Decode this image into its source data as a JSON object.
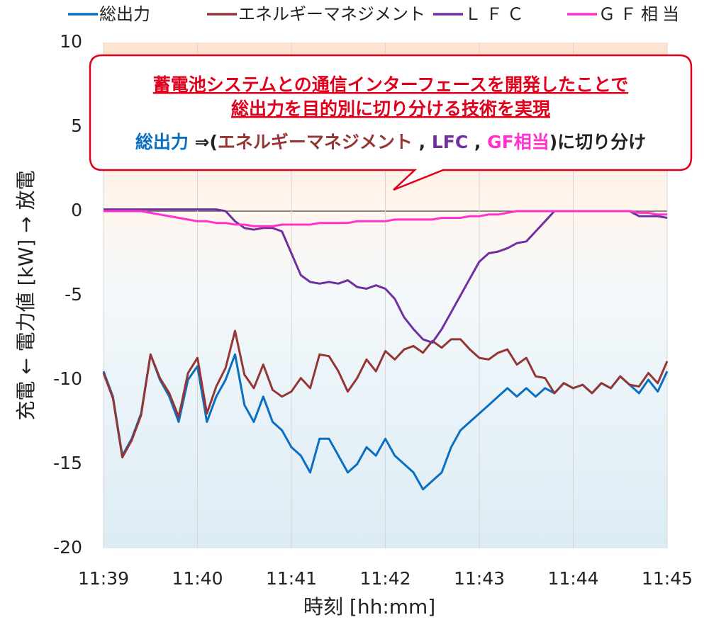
{
  "chart_data": {
    "type": "line",
    "x_label": "時刻 [hh:mm]",
    "y_label": "充電 ← 電力値 [kW] → 放電",
    "xlim": [
      699,
      705
    ],
    "xticks": [
      {
        "value": 699,
        "label": "11:39"
      },
      {
        "value": 700,
        "label": "11:40"
      },
      {
        "value": 701,
        "label": "11:41"
      },
      {
        "value": 702,
        "label": "11:42"
      },
      {
        "value": 703,
        "label": "11:43"
      },
      {
        "value": 704,
        "label": "11:44"
      },
      {
        "value": 705,
        "label": "11:45"
      }
    ],
    "ylim": [
      -20,
      10
    ],
    "yticks": [
      -20,
      -15,
      -10,
      -5,
      0,
      5,
      10
    ],
    "grid": "x",
    "legend": "top",
    "x": [
      699.0,
      699.1,
      699.2,
      699.3,
      699.4,
      699.5,
      699.6,
      699.7,
      699.8,
      699.9,
      700.0,
      700.1,
      700.2,
      700.3,
      700.4,
      700.5,
      700.6,
      700.7,
      700.8,
      700.9,
      701.0,
      701.1,
      701.2,
      701.3,
      701.4,
      701.5,
      701.6,
      701.7,
      701.8,
      701.9,
      702.0,
      702.1,
      702.2,
      702.3,
      702.4,
      702.5,
      702.6,
      702.7,
      702.8,
      702.9,
      703.0,
      703.1,
      703.2,
      703.3,
      703.4,
      703.5,
      703.6,
      703.7,
      703.8,
      703.9,
      704.0,
      704.1,
      704.2,
      704.3,
      704.4,
      704.5,
      704.6,
      704.7,
      704.8,
      704.9,
      705.0
    ],
    "series": [
      {
        "name": "総出力",
        "color": "#0a6fc2",
        "values": [
          -9.5,
          -11,
          -14.5,
          -13.5,
          -12,
          -8.5,
          -10,
          -11,
          -12.5,
          -10,
          -9.2,
          -12.5,
          -11,
          -10,
          -8.5,
          -11.5,
          -12.5,
          -11,
          -12.5,
          -13,
          -14,
          -14.5,
          -15.5,
          -13.5,
          -13.5,
          -14.5,
          -15.5,
          -15,
          -14,
          -14.5,
          -13.5,
          -14.5,
          -15,
          -15.5,
          -16.5,
          -16,
          -15.5,
          -14,
          -13,
          -12.5,
          -12,
          -11.5,
          -11,
          -10.5,
          -11,
          -10.5,
          -11,
          -10.5,
          -10.8,
          -10.2,
          -10.5,
          -10.3,
          -10.8,
          -10.2,
          -10.5,
          -9.8,
          -10.3,
          -10.8,
          -10,
          -10.7,
          -9.5
        ]
      },
      {
        "name": "エネルギーマネジメント",
        "color": "#943634",
        "values": [
          -9.6,
          -11.1,
          -14.6,
          -13.6,
          -12.1,
          -8.5,
          -9.9,
          -10.8,
          -12.2,
          -9.6,
          -8.7,
          -12,
          -10.4,
          -9.3,
          -7.1,
          -9.7,
          -10.5,
          -9.1,
          -10.6,
          -11,
          -10.7,
          -9.9,
          -10.5,
          -8.5,
          -8.6,
          -9.5,
          -10.7,
          -9.9,
          -8.8,
          -9.5,
          -8.3,
          -8.8,
          -8.2,
          -8,
          -8.4,
          -7.7,
          -8.1,
          -7.6,
          -7.6,
          -8.2,
          -8.7,
          -8.8,
          -8.4,
          -8.2,
          -9.1,
          -8.7,
          -9.8,
          -9.9,
          -10.8,
          -10.2,
          -10.5,
          -10.3,
          -10.8,
          -10.2,
          -10.5,
          -9.8,
          -10.3,
          -10.4,
          -9.6,
          -10.2,
          -8.9
        ]
      },
      {
        "name": "ＬＦＣ",
        "color": "#7030a0",
        "values": [
          0.1,
          0.1,
          0.1,
          0.1,
          0.1,
          0.1,
          0.1,
          0.1,
          0.1,
          0.1,
          0.1,
          0.1,
          0.1,
          0,
          -0.6,
          -1,
          -1.1,
          -1,
          -1,
          -1.2,
          -2.5,
          -3.8,
          -4.2,
          -4.3,
          -4.2,
          -4.3,
          -4.1,
          -4.5,
          -4.6,
          -4.4,
          -4.6,
          -5.2,
          -6.3,
          -7,
          -7.6,
          -7.8,
          -7,
          -6,
          -5,
          -4,
          -3,
          -2.5,
          -2.4,
          -2.2,
          -1.9,
          -1.8,
          -1.2,
          -0.6,
          0,
          0,
          0,
          0,
          0,
          0,
          0,
          0,
          0,
          -0.3,
          -0.3,
          -0.3,
          -0.4
        ]
      },
      {
        "name": "ＧＦ相当",
        "color": "#ff33cc",
        "values": [
          0,
          0,
          0,
          0,
          0,
          -0.1,
          -0.2,
          -0.3,
          -0.4,
          -0.5,
          -0.6,
          -0.6,
          -0.7,
          -0.7,
          -0.8,
          -0.8,
          -0.9,
          -0.9,
          -0.9,
          -0.8,
          -0.8,
          -0.8,
          -0.8,
          -0.7,
          -0.7,
          -0.7,
          -0.7,
          -0.6,
          -0.6,
          -0.6,
          -0.6,
          -0.5,
          -0.5,
          -0.5,
          -0.5,
          -0.5,
          -0.4,
          -0.4,
          -0.4,
          -0.3,
          -0.3,
          -0.2,
          -0.2,
          -0.1,
          0,
          0,
          0,
          0,
          0,
          0,
          0,
          0,
          0,
          0,
          0,
          0,
          0,
          -0.1,
          -0.1,
          -0.2,
          -0.2
        ]
      }
    ],
    "annotation": {
      "lines": [
        "蓄電池システムとの通信インターフェースを開発したことで",
        "総出力を目的別に切り分ける技術を実現",
        [
          {
            "text": "総出力",
            "color": "#0a6fc2"
          },
          {
            "text": " ⇒(",
            "color": "#222222"
          },
          {
            "text": "エネルギーマネジメント",
            "color": "#943634"
          },
          {
            "text": " , ",
            "color": "#222222"
          },
          {
            "text": "LFC",
            "color": "#7030a0"
          },
          {
            "text": " , ",
            "color": "#222222"
          },
          {
            "text": "GF相当",
            "color": "#ff33cc"
          },
          {
            "text": ")に切り分け",
            "color": "#222222"
          }
        ]
      ],
      "color": "#e0001b"
    }
  }
}
